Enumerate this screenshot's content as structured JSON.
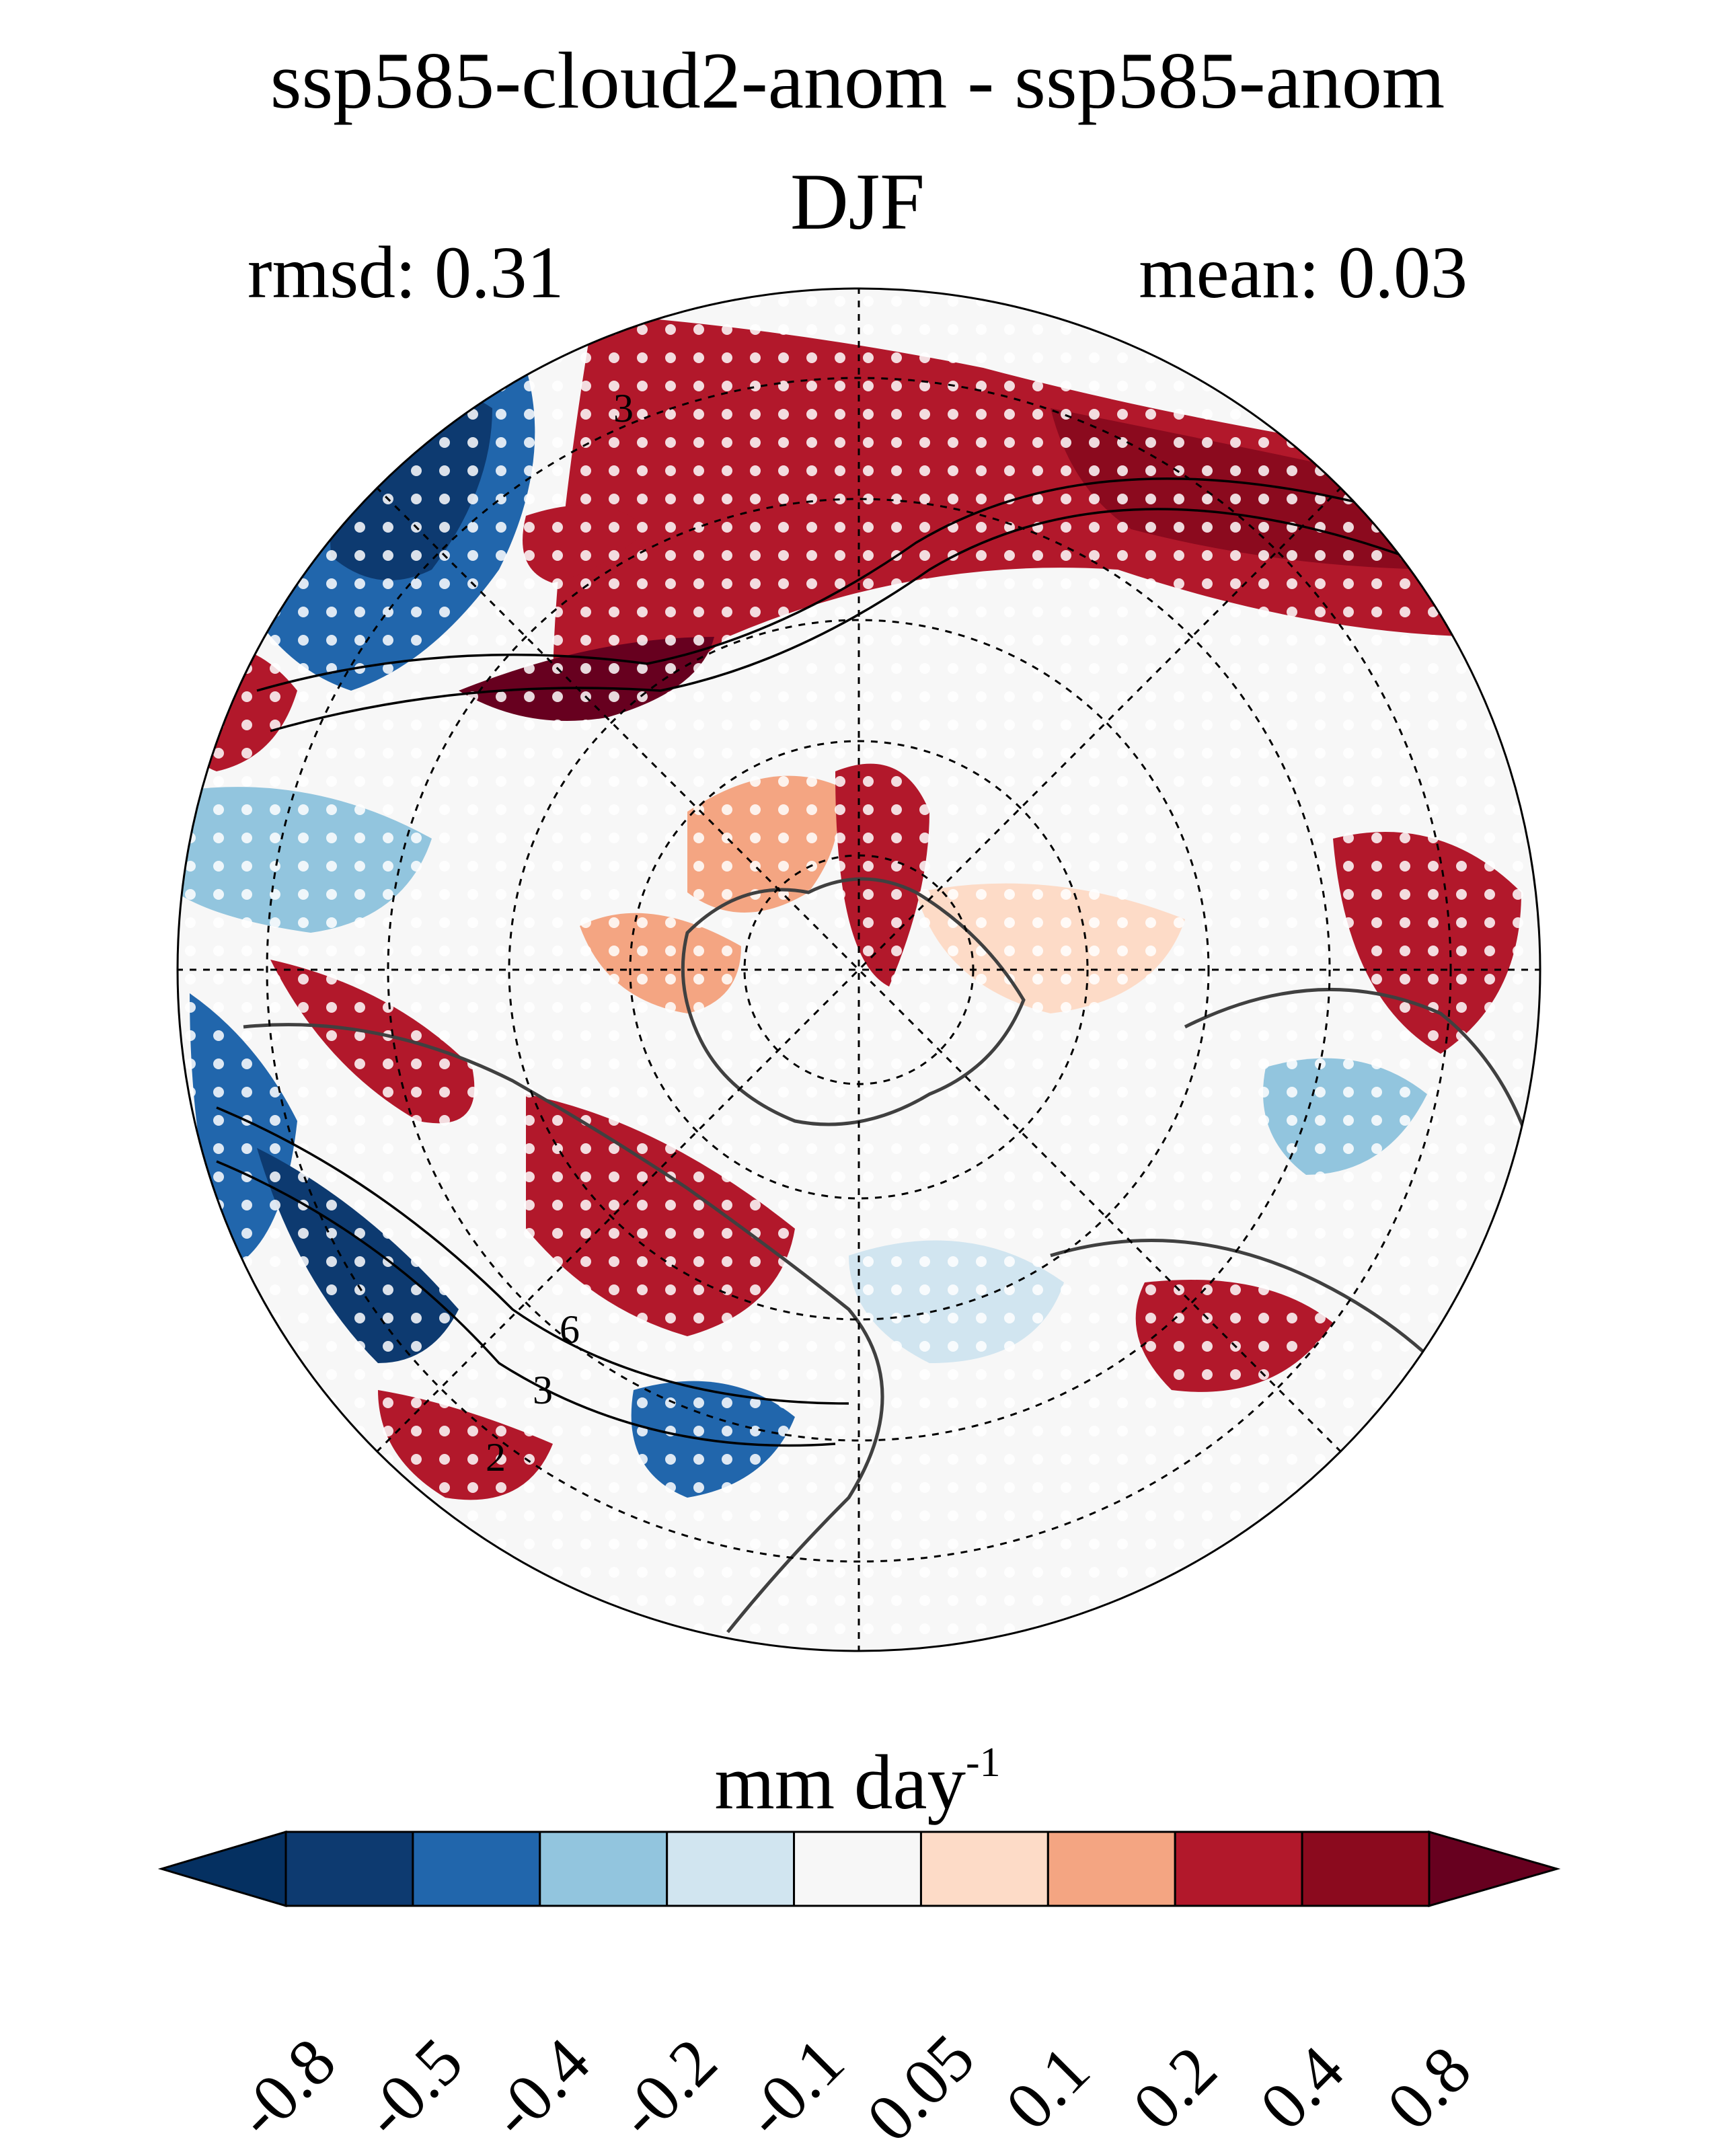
{
  "header": {
    "title": "ssp585-cloud2-anom - ssp585-anom",
    "season": "DJF",
    "rmsd": "rmsd: 0.31",
    "mean": "mean: 0.03"
  },
  "map": {
    "projection": "north-polar-stereographic",
    "contour_labels": [
      "3",
      "6",
      "3",
      "2"
    ],
    "stippling": "white dots mark significant regions"
  },
  "colorbar": {
    "units_main": "mm day",
    "units_exp": "-1",
    "ticks": [
      "-0.8",
      "-0.5",
      "-0.4",
      "-0.2",
      "-0.1",
      "0.05",
      "0.1",
      "0.2",
      "0.4",
      "0.8"
    ],
    "colors": [
      "#053061",
      "#0d3a70",
      "#2166ac",
      "#92c5de",
      "#d1e5f0",
      "#f7f7f7",
      "#fddbc7",
      "#f4a582",
      "#b2182b",
      "#8b0a1e",
      "#67001f"
    ]
  }
}
